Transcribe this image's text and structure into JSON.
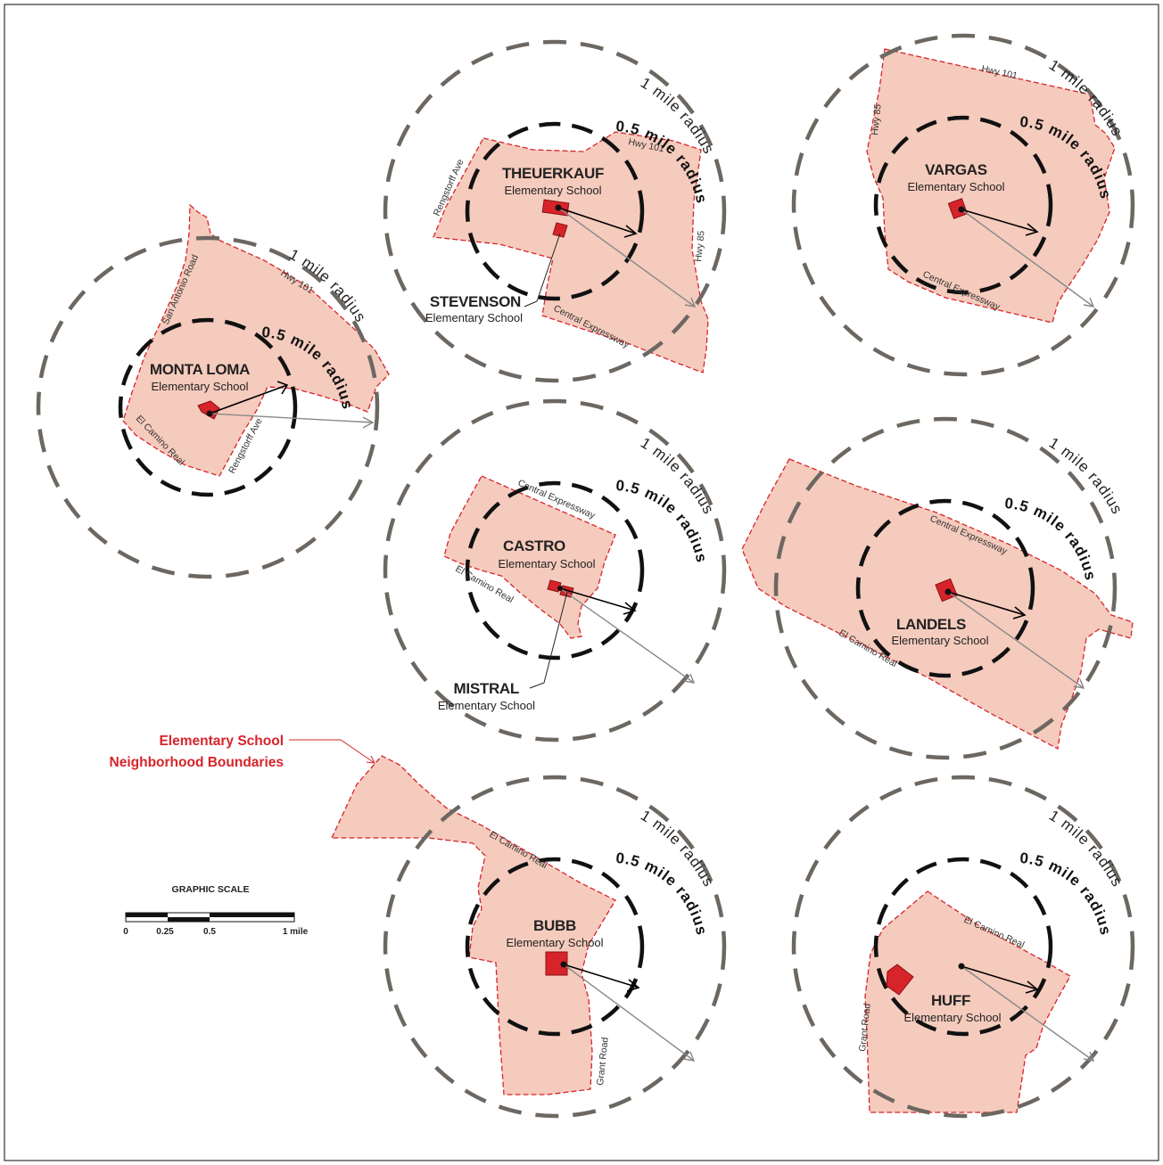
{
  "schools": {
    "monta_loma": {
      "name": "MONTA LOMA",
      "type": "Elementary School"
    },
    "theuerkauf": {
      "name": "THEUERKAUF",
      "type": "Elementary School"
    },
    "stevenson": {
      "name": "STEVENSON",
      "type": "Elementary School"
    },
    "vargas": {
      "name": "VARGAS",
      "type": "Elementary School"
    },
    "castro": {
      "name": "CASTRO",
      "type": "Elementary School"
    },
    "mistral": {
      "name": "MISTRAL",
      "type": "Elementary School"
    },
    "landels": {
      "name": "LANDELS",
      "type": "Elementary School"
    },
    "bubb": {
      "name": "BUBB",
      "type": "Elementary School"
    },
    "huff": {
      "name": "HUFF",
      "type": "Elementary School"
    }
  },
  "roads": {
    "hwy101": "Hwy 101",
    "hwy85": "Hwy 85",
    "san_antonio": "San Antonio Road",
    "rengstorff": "Rengstorff Ave",
    "el_camino": "El Camino Real",
    "central": "Central Expressway",
    "grant": "Grant Road"
  },
  "radius_labels": {
    "one_mile": "1 mile radius",
    "half_mile": "0.5 mile radius"
  },
  "legend": {
    "line1": "Elementary School",
    "line2": "Neighborhood Boundaries",
    "boundary_color": "#d6242a",
    "fill_color": "#f5cbbd"
  },
  "scale": {
    "title": "GRAPHIC SCALE",
    "ticks": [
      "0",
      "0.25",
      "0.5",
      "1 mile"
    ]
  }
}
